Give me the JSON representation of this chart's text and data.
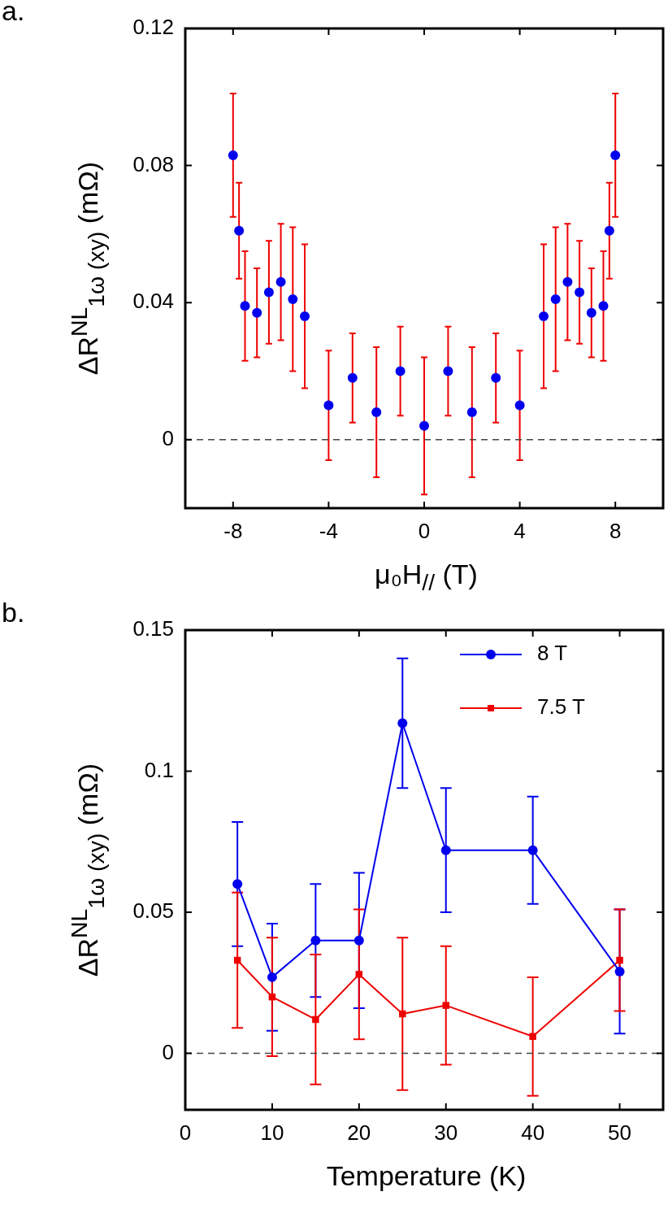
{
  "chart_data": [
    {
      "type": "scatter",
      "title": "a.",
      "xlabel": "μ₀H$_{//}$ (T)",
      "ylabel": "ΔR$^{NL}$$_{1ω (xy)}$ (mΩ)",
      "x": [
        -8,
        -7.75,
        -7.5,
        -7,
        -6.5,
        -6,
        -5.5,
        -5,
        -4,
        -3,
        -2,
        -1,
        0,
        1,
        2,
        3,
        4,
        5,
        5.5,
        6,
        6.5,
        7,
        7.5,
        7.75,
        8
      ],
      "xlim": [
        -10,
        10
      ],
      "xticks": [
        -8,
        -4,
        0,
        4,
        8
      ],
      "ylim": [
        -0.02,
        0.12
      ],
      "yticks": [
        0,
        0.04,
        0.08,
        0.12
      ],
      "marker": "circle",
      "grid": false,
      "legend": false,
      "series": [
        {
          "color": "#0000ee",
          "values": [
            0.083,
            0.061,
            0.039,
            0.037,
            0.043,
            0.046,
            0.041,
            0.036,
            0.01,
            0.018,
            0.008,
            0.02,
            0.004,
            0.02,
            0.008,
            0.018,
            0.01,
            0.036,
            0.041,
            0.046,
            0.043,
            0.037,
            0.039,
            0.061,
            0.083
          ],
          "errors": [
            0.018,
            0.014,
            0.016,
            0.013,
            0.015,
            0.017,
            0.021,
            0.021,
            0.016,
            0.013,
            0.019,
            0.013,
            0.02,
            0.013,
            0.019,
            0.013,
            0.016,
            0.021,
            0.021,
            0.017,
            0.015,
            0.013,
            0.016,
            0.014,
            0.018
          ]
        }
      ],
      "ref_lines": [
        {
          "axis": "y",
          "value": 0,
          "color": "#444444",
          "line_style": "dashed"
        }
      ]
    },
    {
      "type": "line",
      "title": "b.",
      "xlabel": "Temperature (K)",
      "ylabel": "ΔR$^{NL}$$_{1ω (xy)}$ (mΩ)",
      "x": [
        6,
        10,
        15,
        20,
        25,
        30,
        40,
        50
      ],
      "xlim": [
        0,
        55
      ],
      "xticks": [
        0,
        10,
        20,
        30,
        40,
        50
      ],
      "ylim": [
        -0.02,
        0.15
      ],
      "yticks": [
        0,
        0.05,
        0.1,
        0.15
      ],
      "grid": false,
      "legend": "top right",
      "line_style": "solid",
      "series": [
        {
          "name": "8 T",
          "color": "#0000ee",
          "marker": "circle",
          "values": [
            0.06,
            0.027,
            0.04,
            0.04,
            0.117,
            0.072,
            0.072,
            0.029
          ],
          "errors": [
            0.022,
            0.019,
            0.02,
            0.024,
            0.023,
            0.022,
            0.019,
            0.022
          ]
        },
        {
          "name": "7.5 T",
          "color": "#ee0000",
          "marker": "square",
          "values": [
            0.033,
            0.02,
            0.012,
            0.028,
            0.014,
            0.017,
            0.006,
            0.033
          ],
          "errors": [
            0.024,
            0.021,
            0.023,
            0.023,
            0.027,
            0.021,
            0.021,
            0.018
          ]
        }
      ],
      "ref_lines": [
        {
          "axis": "y",
          "value": 0,
          "color": "#444444",
          "line_style": "dashed"
        }
      ]
    }
  ]
}
